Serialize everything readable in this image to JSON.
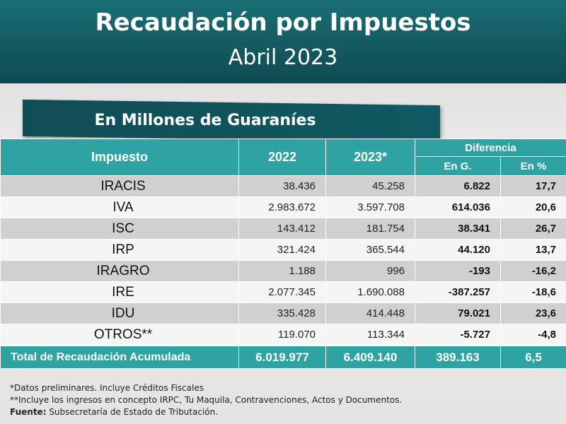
{
  "header": {
    "title": "Recaudación por Impuestos",
    "subtitle": "Abril 2023"
  },
  "banner": "En Millones de Guaraníes",
  "colors": {
    "header_teal": "#145a60",
    "table_teal": "#2fa2a3",
    "row_gray": "#d0d0d0",
    "row_white": "#f5f5f5"
  },
  "chart_data": {
    "type": "table",
    "columns": {
      "impuesto": "Impuesto",
      "y2022": "2022",
      "y2023": "2023*",
      "diferencia": "Diferencia",
      "en_g": "En G.",
      "en_pct": "En %"
    },
    "rows": [
      {
        "impuesto": "IRACIS",
        "y2022": "38.436",
        "y2023": "45.258",
        "en_g": "6.822",
        "en_pct": "17,7"
      },
      {
        "impuesto": "IVA",
        "y2022": "2.983.672",
        "y2023": "3.597.708",
        "en_g": "614.036",
        "en_pct": "20,6"
      },
      {
        "impuesto": "ISC",
        "y2022": "143.412",
        "y2023": "181.754",
        "en_g": "38.341",
        "en_pct": "26,7"
      },
      {
        "impuesto": "IRP",
        "y2022": "321.424",
        "y2023": "365.544",
        "en_g": "44.120",
        "en_pct": "13,7"
      },
      {
        "impuesto": "IRAGRO",
        "y2022": "1.188",
        "y2023": "996",
        "en_g": "-193",
        "en_pct": "-16,2"
      },
      {
        "impuesto": "IRE",
        "y2022": "2.077.345",
        "y2023": "1.690.088",
        "en_g": "-387.257",
        "en_pct": "-18,6"
      },
      {
        "impuesto": "IDU",
        "y2022": "335.428",
        "y2023": "414.448",
        "en_g": "79.021",
        "en_pct": "23,6"
      },
      {
        "impuesto": "OTROS**",
        "y2022": "119.070",
        "y2023": "113.344",
        "en_g": "-5.727",
        "en_pct": "-4,8"
      }
    ],
    "total": {
      "impuesto": "Total de Recaudación Acumulada",
      "y2022": "6.019.977",
      "y2023": "6.409.140",
      "en_g": "389.163",
      "en_pct": "6,5"
    }
  },
  "notes": {
    "line1": "*Datos preliminares. Incluye Créditos Fiscales",
    "line2": "**Incluye los ingresos en concepto IRPC, Tu Maquila, Contravenciones, Actos y Documentos.",
    "source_label": "Fuente:",
    "source_text": " Subsecretaría de Estado de Tributación."
  }
}
